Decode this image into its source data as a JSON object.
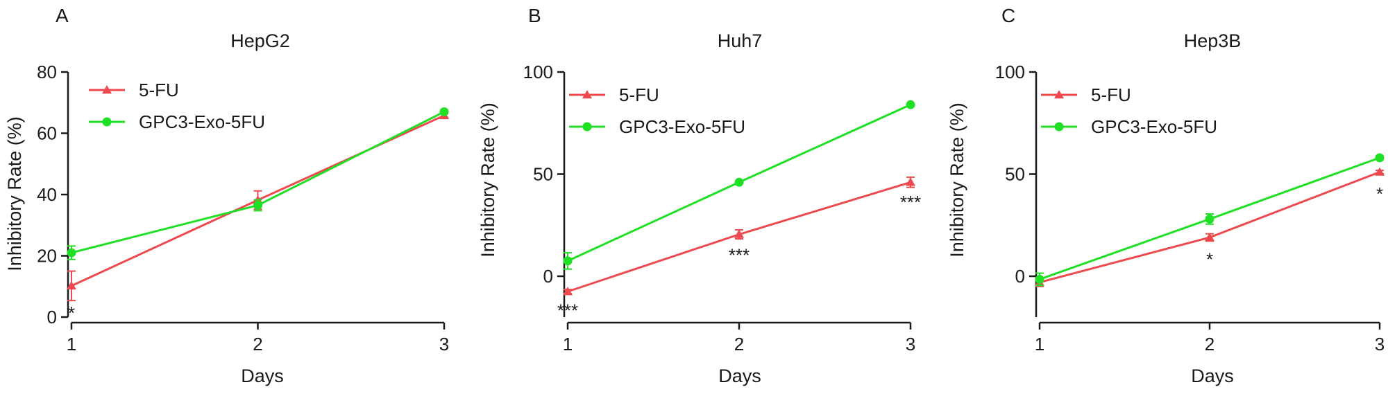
{
  "chart_data": [
    {
      "panel_label": "A",
      "type": "line",
      "title": "HepG2",
      "xlabel": "Days",
      "ylabel": "Inhibitory Rate (%)",
      "x": [
        1,
        2,
        3
      ],
      "xticks": [
        "1",
        "2",
        "3"
      ],
      "ylim": [
        0,
        80
      ],
      "yticks": [
        0,
        20,
        40,
        60,
        80
      ],
      "legend_position": "top-left",
      "series": [
        {
          "name": "5-FU",
          "color": "#ec4a4f",
          "marker": "triangle",
          "values": [
            10.2,
            38.2,
            65.8
          ],
          "errors": [
            4.8,
            3.0,
            0.6
          ]
        },
        {
          "name": "GPC3-Exo-5FU",
          "color": "#1fe024",
          "marker": "circle",
          "values": [
            21.0,
            36.5,
            67.0
          ],
          "errors": [
            2.2,
            1.8,
            0.5
          ]
        }
      ],
      "annotations": [
        {
          "x": 1,
          "y": 2.5,
          "text": "*"
        }
      ]
    },
    {
      "panel_label": "B",
      "type": "line",
      "title": "Huh7",
      "xlabel": "Days",
      "ylabel": "Inhibitory Rate (%)",
      "x": [
        1,
        2,
        3
      ],
      "xticks": [
        "1",
        "2",
        "3"
      ],
      "ylim": [
        -20,
        100
      ],
      "yticks": [
        0,
        50,
        100
      ],
      "legend_position": "top-left",
      "series": [
        {
          "name": "5-FU",
          "color": "#ec4a4f",
          "marker": "triangle",
          "values": [
            -7.5,
            20.5,
            46.0
          ],
          "errors": [
            1.0,
            2.2,
            2.5
          ]
        },
        {
          "name": "GPC3-Exo-5FU",
          "color": "#1fe024",
          "marker": "circle",
          "values": [
            7.5,
            46.0,
            84.0
          ],
          "errors": [
            4.0,
            0.5,
            0.5
          ]
        }
      ],
      "annotations": [
        {
          "x": 1,
          "y": -15,
          "text": "***"
        },
        {
          "x": 2,
          "y": 12,
          "text": "***"
        },
        {
          "x": 3,
          "y": 38,
          "text": "***"
        }
      ]
    },
    {
      "panel_label": "C",
      "type": "line",
      "title": "Hep3B",
      "xlabel": "Days",
      "ylabel": "Inhibitory Rate (%)",
      "x": [
        1,
        2,
        3
      ],
      "xticks": [
        "1",
        "2",
        "3"
      ],
      "ylim": [
        -20,
        100
      ],
      "yticks": [
        0,
        50,
        100
      ],
      "legend_position": "top-left",
      "series": [
        {
          "name": "5-FU",
          "color": "#ec4a4f",
          "marker": "triangle",
          "values": [
            -3.0,
            19.0,
            51.0
          ],
          "errors": [
            2.0,
            1.8,
            0.8
          ]
        },
        {
          "name": "GPC3-Exo-5FU",
          "color": "#1fe024",
          "marker": "circle",
          "values": [
            -1.5,
            28.0,
            58.0
          ],
          "errors": [
            3.0,
            2.5,
            0.8
          ]
        }
      ],
      "annotations": [
        {
          "x": 2,
          "y": 10,
          "text": "*"
        },
        {
          "x": 3,
          "y": 42,
          "text": "*"
        }
      ]
    }
  ]
}
